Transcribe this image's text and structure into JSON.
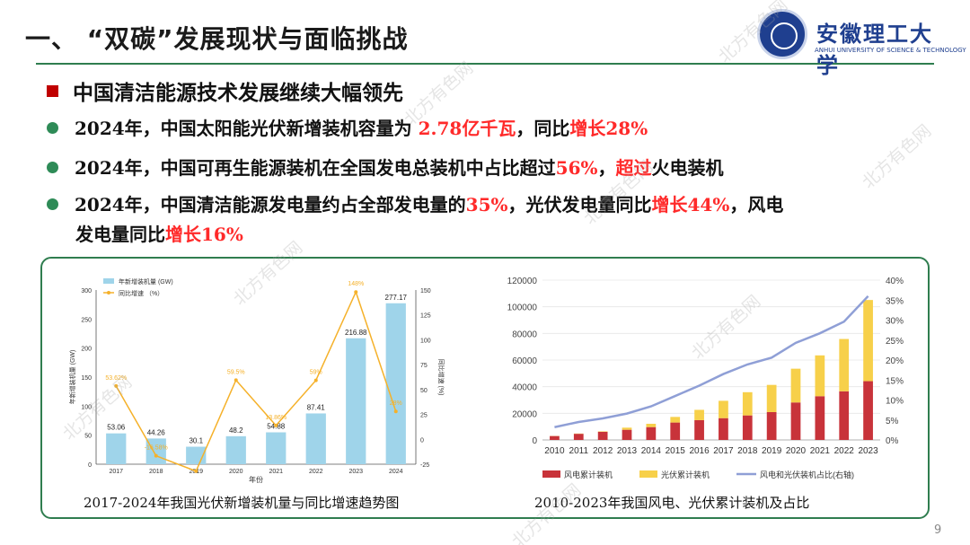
{
  "header": {
    "title": "一、 “双碳”发展现状与面临挑战",
    "university_cn": "安徽理工大学",
    "university_en": "ANHUI UNIVERSITY OF SCIENCE & TECHNOLOGY"
  },
  "subheading": "中国清洁能源技术发展继续大幅领先",
  "bullets": {
    "b1": {
      "p1": "2024年，中国太阳能光伏新增装机容量为 ",
      "hl1": "2.78亿千瓦",
      "p2": "，同比",
      "hl2": "增长28%"
    },
    "b2": {
      "p1": "2024年，中国可再生能源装机在全国发电总装机中占比超过",
      "hl1": "56%",
      "p2": "，",
      "hl2": "超过",
      "p3": "火电装机"
    },
    "b3": {
      "p1": "2024年，中国清洁能源发电量约占全部发电量的",
      "hl1": "35%",
      "p2": "，光伏发电量同比",
      "hl2": "增长44%",
      "p3": "，风电",
      "p4": "发电量同比",
      "hl3": "增长16%"
    }
  },
  "captions": {
    "left": "2017-2024年我国光伏新增装机量与同比增速趋势图",
    "right": "2010-2023年我国风电、光伏累计装机及占比"
  },
  "page_number": "9",
  "watermark": "北方有色网",
  "colors": {
    "accent_green": "#2f7d4f",
    "highlight_red": "#ff2a2a",
    "bar_blue": "#9fd4ea",
    "line_orange": "#f5b12a",
    "wind_red": "#c8333a",
    "pv_yellow": "#f7d04a",
    "share_purple": "#8f9fd6"
  },
  "chart_data": [
    {
      "type": "bar",
      "categories": [
        "2017",
        "2018",
        "2019",
        "2020",
        "2021",
        "2022",
        "2023",
        "2024"
      ],
      "series": [
        {
          "name": "年新增装机量 (GW)",
          "kind": "bar",
          "axis": "left",
          "values": [
            53.06,
            44.26,
            30.1,
            48.2,
            54.88,
            87.41,
            216.88,
            277.17
          ],
          "labels": [
            "53.06",
            "44.26",
            "30.1",
            "48.2",
            "54.88",
            "87.41",
            "216.88",
            "277.17"
          ]
        },
        {
          "name": "同比增速 （%）",
          "kind": "line",
          "axis": "right",
          "values": [
            53.62,
            -16.58,
            -31.99,
            59.5,
            13.86,
            59.27,
            148,
            28
          ],
          "labels": [
            "53.62%",
            "-16.58%",
            "",
            "59.5%",
            "13.86%",
            "59%",
            "148%",
            "28%"
          ]
        }
      ],
      "xlabel": "年份",
      "ylabel": "年新增装机量 (GW)",
      "y2label": "同比增速 (%)",
      "ylim": [
        0,
        300
      ],
      "y2lim": [
        -25,
        150
      ],
      "yticks": [
        "0",
        "50",
        "100",
        "150",
        "200",
        "250",
        "300"
      ],
      "y2ticks": [
        "-25",
        "0",
        "25",
        "50",
        "75",
        "100",
        "125",
        "150"
      ]
    },
    {
      "type": "bar",
      "categories": [
        "2010",
        "2011",
        "2012",
        "2013",
        "2014",
        "2015",
        "2016",
        "2017",
        "2018",
        "2019",
        "2020",
        "2021",
        "2022",
        "2023"
      ],
      "series": [
        {
          "name": "风电累计装机",
          "kind": "stacked_bar",
          "axis": "left",
          "values": [
            2958,
            4623,
            6142,
            7652,
            9657,
            13075,
            14864,
            16367,
            18426,
            20915,
            28153,
            32848,
            36544,
            44134
          ]
        },
        {
          "name": "光伏累计装机",
          "kind": "stacked_bar",
          "axis": "left",
          "values": [
            86,
            212,
            341,
            1589,
            2486,
            4218,
            7742,
            13025,
            17433,
            20418,
            25343,
            30656,
            39261,
            60949
          ]
        },
        {
          "name": "风电和光伏装机占比(右轴)",
          "kind": "line",
          "axis": "right",
          "values": [
            3.2,
            4.5,
            5.4,
            6.6,
            8.4,
            11.0,
            13.6,
            16.5,
            18.9,
            20.6,
            24.3,
            26.7,
            29.6,
            36.0
          ]
        }
      ],
      "ylim": [
        0,
        120000
      ],
      "y2lim": [
        0,
        40
      ],
      "yticks": [
        "0",
        "20000",
        "40000",
        "60000",
        "80000",
        "100000",
        "120000"
      ],
      "y2ticks": [
        "0%",
        "5%",
        "10%",
        "15%",
        "20%",
        "25%",
        "30%",
        "35%",
        "40%"
      ]
    }
  ]
}
